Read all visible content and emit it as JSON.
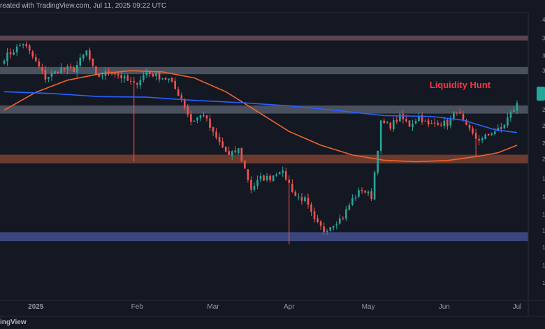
{
  "header": {
    "created_text": "reated with TradingView.com, Jul 11, 2025 09:22 UTC"
  },
  "footer": {
    "brand": "ingView"
  },
  "colors": {
    "background": "#141823",
    "up_candle": "#26a69a",
    "down_candle": "#ef5350",
    "ma_fast": "#2962ff",
    "ma_slow": "#f0642d",
    "zone_top": "#b07a82",
    "zone_mid": "#8b95a6",
    "zone_support": "#b35a3c",
    "zone_demand": "#5a6ec8",
    "annotation": "#f23645",
    "axis_text": "#9598a1",
    "last_price_badge": "#26a69a"
  },
  "chart_data": {
    "type": "candlestick",
    "title": "",
    "x_axis_labels": [
      "2025",
      "Feb",
      "Mar",
      "Apr",
      "May",
      "Jun",
      "Jul"
    ],
    "y_range_pct": [
      0,
      100
    ],
    "annotation": {
      "text": "Liquidity Hunt"
    },
    "zones": [
      {
        "name": "top-resistance-zone",
        "low": 90.3,
        "high": 92.0,
        "color": "#b07a82",
        "opacity": 0.45
      },
      {
        "name": "upper-resistance-zone",
        "low": 78.6,
        "high": 81.1,
        "color": "#8b95a6",
        "opacity": 0.45
      },
      {
        "name": "mid-resistance-zone",
        "low": 64.9,
        "high": 67.7,
        "color": "#8b95a6",
        "opacity": 0.45
      },
      {
        "name": "support-zone",
        "low": 47.6,
        "high": 50.6,
        "color": "#b35a3c",
        "opacity": 0.55
      },
      {
        "name": "demand-zone",
        "low": 20.6,
        "high": 23.7,
        "color": "#5a6ec8",
        "opacity": 0.55
      }
    ],
    "key_points": [
      [
        0,
        84.3
      ],
      [
        6,
        89.4
      ],
      [
        9,
        84.6
      ],
      [
        13,
        77.3
      ],
      [
        18,
        80.5
      ],
      [
        22,
        80.2
      ],
      [
        26,
        86.5
      ],
      [
        29,
        77.6
      ],
      [
        34,
        79.7
      ],
      [
        41,
        74.8
      ],
      [
        45,
        79.2
      ],
      [
        52,
        76.7
      ],
      [
        56,
        70.2
      ],
      [
        59,
        62.2
      ],
      [
        63,
        64.6
      ],
      [
        66,
        57.8
      ],
      [
        71,
        50.1
      ],
      [
        74,
        52.4
      ],
      [
        78,
        38.8
      ],
      [
        81,
        42.4
      ],
      [
        84,
        42.6
      ],
      [
        87,
        45.5
      ],
      [
        89,
        42.6
      ],
      [
        92,
        36.3
      ],
      [
        95,
        34.9
      ],
      [
        98,
        27.4
      ],
      [
        101,
        24.3
      ],
      [
        104,
        26.8
      ],
      [
        107,
        29.0
      ],
      [
        110,
        35.2
      ],
      [
        113,
        38.6
      ],
      [
        116,
        36.0
      ],
      [
        119,
        61.6
      ],
      [
        122,
        60.7
      ],
      [
        125,
        63.7
      ],
      [
        128,
        60.9
      ],
      [
        131,
        64.0
      ],
      [
        134,
        60.7
      ],
      [
        137,
        62.0
      ],
      [
        140,
        61.3
      ],
      [
        143,
        66.1
      ],
      [
        146,
        59.9
      ],
      [
        149,
        56.3
      ],
      [
        151,
        55.8
      ],
      [
        154,
        58.6
      ],
      [
        157,
        59.4
      ],
      [
        159,
        63.3
      ],
      [
        162,
        68.1
      ]
    ],
    "ma_fast": {
      "name": "",
      "points": [
        [
          0,
          72.5
        ],
        [
          15,
          71.9
        ],
        [
          30,
          70.8
        ],
        [
          45,
          70.6
        ],
        [
          60,
          69.5
        ],
        [
          75,
          68.7
        ],
        [
          90,
          67.6
        ],
        [
          105,
          66.0
        ],
        [
          120,
          64.2
        ],
        [
          135,
          63.9
        ],
        [
          145,
          62.6
        ],
        [
          155,
          59.3
        ],
        [
          162,
          58.3
        ]
      ]
    },
    "ma_slow": {
      "name": "",
      "points": [
        [
          0,
          66.1
        ],
        [
          10,
          72.3
        ],
        [
          20,
          76.5
        ],
        [
          30,
          78.7
        ],
        [
          40,
          79.8
        ],
        [
          50,
          79.4
        ],
        [
          60,
          77.3
        ],
        [
          70,
          72.5
        ],
        [
          80,
          65.6
        ],
        [
          90,
          58.7
        ],
        [
          100,
          53.9
        ],
        [
          110,
          50.5
        ],
        [
          120,
          48.7
        ],
        [
          130,
          48.2
        ],
        [
          140,
          48.6
        ],
        [
          150,
          50.1
        ],
        [
          156,
          51.3
        ],
        [
          162,
          53.9
        ]
      ]
    }
  }
}
